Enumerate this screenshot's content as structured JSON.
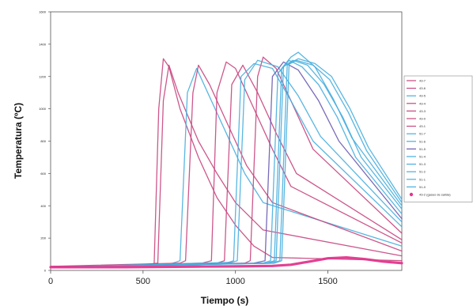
{
  "chart_data": {
    "type": "line",
    "title": "",
    "xlabel": "Tiempo (s)",
    "ylabel": "Temperatura (ºC)",
    "xlim": [
      0,
      1900
    ],
    "ylim": [
      0,
      1600
    ],
    "xticks": [
      0,
      500,
      1000,
      1500
    ],
    "yticks": [
      0,
      200,
      400,
      600,
      800,
      1000,
      1200,
      1400,
      1600
    ],
    "grid": false,
    "legend_position": "right",
    "colors": {
      "magenta": "#c8457e",
      "cyan": "#47aede",
      "purple": "#6a5ab0",
      "pink_bold": "#e2368d"
    },
    "series": [
      {
        "name": "43-7",
        "color": "#c8457e",
        "x": [
          0,
          500,
          560,
          585,
          610,
          640,
          700,
          800,
          900,
          1000,
          1100,
          1200,
          1900
        ],
        "y": [
          25,
          30,
          40,
          1000,
          1310,
          1260,
          1000,
          700,
          450,
          280,
          150,
          80,
          60
        ]
      },
      {
        "name": "43-6",
        "color": "#c8457e",
        "x": [
          0,
          500,
          580,
          610,
          640,
          690,
          800,
          900,
          1000,
          1150,
          1900
        ],
        "y": [
          20,
          35,
          45,
          1050,
          1270,
          1100,
          800,
          600,
          420,
          250,
          90
        ]
      },
      {
        "name": "43-5",
        "color": "#47aede",
        "x": [
          0,
          650,
          700,
          740,
          790,
          850,
          950,
          1050,
          1150,
          1900
        ],
        "y": [
          20,
          40,
          60,
          1100,
          1250,
          1100,
          850,
          600,
          420,
          150
        ]
      },
      {
        "name": "43-4",
        "color": "#c8457e",
        "x": [
          0,
          700,
          730,
          770,
          800,
          860,
          960,
          1060,
          1200,
          1900
        ],
        "y": [
          25,
          45,
          60,
          1100,
          1270,
          1150,
          900,
          650,
          420,
          120
        ]
      },
      {
        "name": "43-3",
        "color": "#c8457e",
        "x": [
          0,
          820,
          870,
          900,
          950,
          1000,
          1100,
          1200,
          1300,
          1900
        ],
        "y": [
          20,
          45,
          60,
          1100,
          1290,
          1250,
          1000,
          750,
          520,
          170
        ]
      },
      {
        "name": "43-0",
        "color": "#c8457e",
        "x": [
          0,
          900,
          940,
          980,
          1040,
          1120,
          1220,
          1330,
          1900
        ],
        "y": [
          20,
          45,
          60,
          1150,
          1270,
          1100,
          850,
          600,
          190
        ]
      },
      {
        "name": "43-1",
        "color": "#c8457e",
        "x": [
          0,
          1050,
          1080,
          1120,
          1150,
          1220,
          1320,
          1420,
          1900
        ],
        "y": [
          20,
          45,
          60,
          1200,
          1320,
          1250,
          1000,
          750,
          230
        ]
      },
      {
        "name": "51-7",
        "color": "#47aede",
        "x": [
          0,
          950,
          990,
          1030,
          1100,
          1200,
          1300,
          1420,
          1900
        ],
        "y": [
          20,
          45,
          60,
          1200,
          1280,
          1250,
          1050,
          800,
          270
        ]
      },
      {
        "name": "51-6",
        "color": "#47aede",
        "x": [
          0,
          980,
          1010,
          1050,
          1120,
          1230,
          1340,
          1460,
          1900
        ],
        "y": [
          20,
          50,
          60,
          1180,
          1300,
          1260,
          1080,
          830,
          300
        ]
      },
      {
        "name": "51-5",
        "color": "#6a5ab0",
        "x": [
          0,
          1100,
          1160,
          1200,
          1260,
          1340,
          1450,
          1560,
          1900
        ],
        "y": [
          20,
          45,
          60,
          1200,
          1290,
          1240,
          1050,
          800,
          320
        ]
      },
      {
        "name": "51-4",
        "color": "#47aede",
        "x": [
          0,
          1150,
          1190,
          1230,
          1290,
          1360,
          1450,
          1550,
          1650,
          1900
        ],
        "y": [
          20,
          45,
          60,
          1220,
          1300,
          1260,
          1150,
          950,
          700,
          350
        ]
      },
      {
        "name": "51-3",
        "color": "#47aede",
        "x": [
          0,
          1170,
          1210,
          1250,
          1300,
          1340,
          1430,
          1530,
          1630,
          1900
        ],
        "y": [
          20,
          45,
          60,
          1250,
          1320,
          1350,
          1260,
          1060,
          820,
          400
        ]
      },
      {
        "name": "51-2",
        "color": "#47aede",
        "x": [
          0,
          1180,
          1220,
          1260,
          1310,
          1390,
          1480,
          1580,
          1680,
          1900
        ],
        "y": [
          20,
          45,
          60,
          1260,
          1300,
          1270,
          1150,
          950,
          700,
          380
        ]
      },
      {
        "name": "51-1",
        "color": "#47aede",
        "x": [
          0,
          1200,
          1240,
          1280,
          1330,
          1420,
          1510,
          1610,
          1710,
          1900
        ],
        "y": [
          20,
          45,
          60,
          1270,
          1300,
          1270,
          1180,
          980,
          740,
          420
        ]
      },
      {
        "name": "51-0",
        "color": "#47aede",
        "x": [
          0,
          1210,
          1250,
          1290,
          1340,
          1430,
          1520,
          1620,
          1720,
          1900
        ],
        "y": [
          20,
          45,
          60,
          1280,
          1310,
          1280,
          1200,
          1000,
          760,
          440
        ]
      },
      {
        "name": "43-2 (gases de salida)",
        "color": "#e2368d",
        "bold": true,
        "x": [
          0,
          200,
          400,
          600,
          800,
          1000,
          1200,
          1300,
          1400,
          1500,
          1600,
          1700,
          1800,
          1900
        ],
        "y": [
          20,
          20,
          20,
          22,
          24,
          25,
          28,
          35,
          55,
          75,
          80,
          70,
          55,
          45
        ]
      }
    ]
  }
}
